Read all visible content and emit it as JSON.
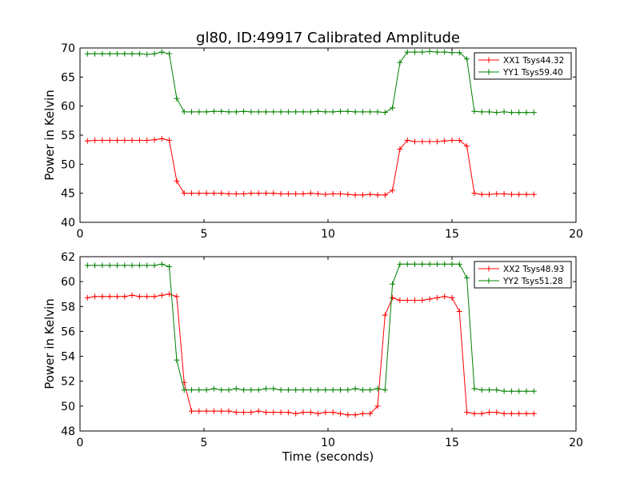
{
  "chart_data": {
    "type": "line",
    "title": "gl80, ID:49917 Calibrated Amplitude",
    "xlabel": "Time (seconds)",
    "x": [
      0.3,
      0.6,
      0.9,
      1.2,
      1.5,
      1.8,
      2.1,
      2.4,
      2.7,
      3.0,
      3.3,
      3.6,
      3.9,
      4.2,
      4.5,
      4.8,
      5.1,
      5.4,
      5.7,
      6.0,
      6.3,
      6.6,
      6.9,
      7.2,
      7.5,
      7.8,
      8.1,
      8.4,
      8.7,
      9.0,
      9.3,
      9.6,
      9.9,
      10.2,
      10.5,
      10.8,
      11.1,
      11.4,
      11.7,
      12.0,
      12.3,
      12.6,
      12.9,
      13.2,
      13.5,
      13.8,
      14.1,
      14.4,
      14.7,
      15.0,
      15.3,
      15.6,
      15.9,
      16.2,
      16.5,
      16.8,
      17.1,
      17.4,
      17.7,
      18.0,
      18.3
    ],
    "panels": [
      {
        "ylabel": "Power in Kelvin",
        "xlim": [
          0,
          20
        ],
        "ylim": [
          40,
          70
        ],
        "xticks": [
          "0",
          "5",
          "10",
          "15",
          "20"
        ],
        "yticks": [
          "40",
          "45",
          "50",
          "55",
          "60",
          "65",
          "70"
        ],
        "legend_position": "top-right",
        "series": [
          {
            "name": "XX1 Tsys44.32",
            "color": "#ff0000",
            "values": [
              54.0,
              54.1,
              54.1,
              54.1,
              54.1,
              54.1,
              54.1,
              54.1,
              54.1,
              54.2,
              54.4,
              54.1,
              47.1,
              45.0,
              45.0,
              45.0,
              45.0,
              45.0,
              45.0,
              44.9,
              44.9,
              44.9,
              45.0,
              45.0,
              45.0,
              45.0,
              44.9,
              44.9,
              44.9,
              44.9,
              45.0,
              44.9,
              44.8,
              44.9,
              44.9,
              44.8,
              44.7,
              44.7,
              44.8,
              44.7,
              44.7,
              45.5,
              52.6,
              54.1,
              53.9,
              53.9,
              53.9,
              53.9,
              54.0,
              54.1,
              54.1,
              53.1,
              45.0,
              44.8,
              44.8,
              44.9,
              44.9,
              44.8,
              44.8,
              44.8,
              44.8
            ]
          },
          {
            "name": "YY1 Tsys59.40",
            "color": "#008000",
            "values": [
              69.0,
              69.0,
              69.0,
              69.0,
              69.0,
              69.0,
              69.0,
              69.0,
              68.9,
              69.0,
              69.3,
              69.0,
              61.3,
              59.0,
              59.0,
              59.0,
              59.0,
              59.1,
              59.1,
              59.0,
              59.0,
              59.1,
              59.0,
              59.0,
              59.0,
              59.0,
              59.0,
              59.0,
              59.0,
              59.0,
              59.0,
              59.1,
              59.0,
              59.0,
              59.1,
              59.1,
              59.0,
              59.0,
              59.0,
              59.0,
              58.9,
              59.7,
              67.5,
              69.3,
              69.3,
              69.3,
              69.4,
              69.3,
              69.3,
              69.2,
              69.2,
              68.1,
              59.1,
              59.0,
              59.0,
              58.9,
              59.0,
              58.9,
              58.9,
              58.9,
              58.9
            ]
          }
        ]
      },
      {
        "ylabel": "Power in Kelvin",
        "xlim": [
          0,
          20
        ],
        "ylim": [
          48,
          62
        ],
        "xticks": [
          "0",
          "5",
          "10",
          "15",
          "20"
        ],
        "yticks": [
          "48",
          "50",
          "52",
          "54",
          "56",
          "58",
          "60",
          "62"
        ],
        "legend_position": "top-right",
        "series": [
          {
            "name": "XX2 Tsys48.93",
            "color": "#ff0000",
            "values": [
              58.7,
              58.8,
              58.8,
              58.8,
              58.8,
              58.8,
              58.9,
              58.8,
              58.8,
              58.8,
              58.9,
              59.0,
              58.8,
              51.9,
              49.6,
              49.6,
              49.6,
              49.6,
              49.6,
              49.6,
              49.5,
              49.5,
              49.5,
              49.6,
              49.5,
              49.5,
              49.5,
              49.5,
              49.4,
              49.5,
              49.5,
              49.4,
              49.5,
              49.5,
              49.4,
              49.3,
              49.3,
              49.4,
              49.4,
              50.0,
              57.3,
              58.7,
              58.5,
              58.5,
              58.5,
              58.5,
              58.6,
              58.7,
              58.8,
              58.7,
              57.6,
              49.5,
              49.4,
              49.4,
              49.5,
              49.5,
              49.4,
              49.4,
              49.4,
              49.4,
              49.4
            ]
          },
          {
            "name": "YY2 Tsys51.28",
            "color": "#008000",
            "values": [
              61.3,
              61.3,
              61.3,
              61.3,
              61.3,
              61.3,
              61.3,
              61.3,
              61.3,
              61.3,
              61.4,
              61.2,
              53.7,
              51.3,
              51.3,
              51.3,
              51.3,
              51.4,
              51.3,
              51.3,
              51.4,
              51.3,
              51.3,
              51.3,
              51.4,
              51.4,
              51.3,
              51.3,
              51.3,
              51.3,
              51.3,
              51.3,
              51.3,
              51.3,
              51.3,
              51.3,
              51.4,
              51.3,
              51.3,
              51.4,
              51.3,
              59.8,
              61.4,
              61.4,
              61.4,
              61.4,
              61.4,
              61.4,
              61.4,
              61.4,
              61.4,
              60.3,
              51.4,
              51.3,
              51.3,
              51.3,
              51.2,
              51.2,
              51.2,
              51.2,
              51.2
            ]
          }
        ]
      }
    ]
  }
}
